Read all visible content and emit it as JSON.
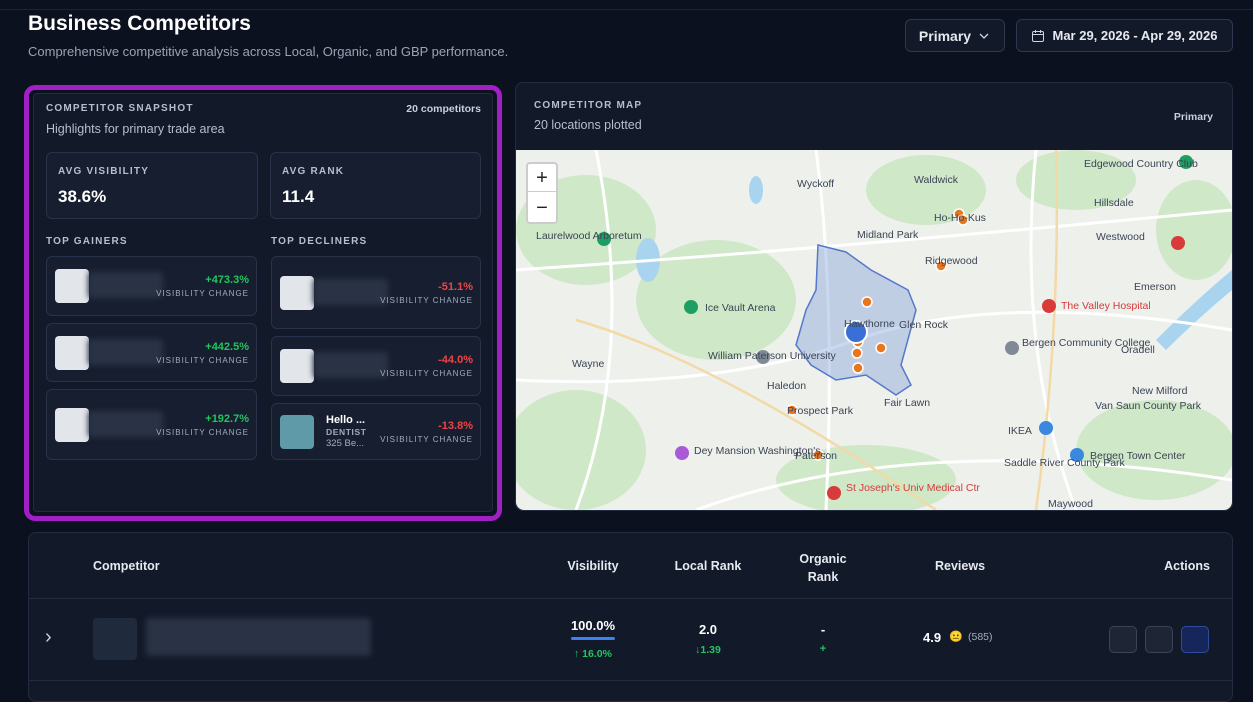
{
  "header": {
    "title": "Business Competitors",
    "subtitle": "Comprehensive competitive analysis across Local, Organic, and GBP performance.",
    "area_button": "Primary",
    "date_range": "Mar 29, 2026 - Apr 29, 2026"
  },
  "snapshot": {
    "label": "COMPETITOR SNAPSHOT",
    "subtitle": "Highlights for primary trade area",
    "count": "20 competitors",
    "metrics": [
      {
        "label": "AVG VISIBILITY",
        "value": "38.6%"
      },
      {
        "label": "AVG RANK",
        "value": "11.4"
      }
    ],
    "gainers_label": "TOP GAINERS",
    "decliners_label": "TOP DECLINERS",
    "gainers": [
      {
        "change": "+473.3%",
        "caption": "VISIBILITY CHANGE"
      },
      {
        "change": "+442.5%",
        "caption": "VISIBILITY CHANGE"
      },
      {
        "change": "+192.7%",
        "caption": "VISIBILITY CHANGE"
      }
    ],
    "decliners": [
      {
        "change": "-51.1%",
        "caption": "VISIBILITY CHANGE"
      },
      {
        "change": "-44.0%",
        "caption": "VISIBILITY CHANGE"
      },
      {
        "name": "Hello ...",
        "category": "DENTIST",
        "address": "325 Be...",
        "change": "-13.8%",
        "caption": "VISIBILITY CHANGE"
      }
    ]
  },
  "map": {
    "label": "COMPETITOR MAP",
    "subtitle": "20 locations plotted",
    "area": "Primary",
    "zoom_in": "+",
    "zoom_out": "−",
    "places": [
      "Wyckoff",
      "Waldwick",
      "Ho-Ho-Kus",
      "Midland Park",
      "Hillsdale",
      "Westwood",
      "Ridgewood",
      "Emerson",
      "The Valley Hospital",
      "Ice Vault Arena",
      "Glen Rock",
      "Oradell",
      "Wayne",
      "William Paterson University",
      "Bergen Community College",
      "Haledon",
      "Prospect Park",
      "Fair Lawn",
      "New Milford",
      "Van Saun County Park",
      "Dey Mansion Washington's...",
      "Paterson",
      "IKEA",
      "Bergen Town Center",
      "Saddle River County Park",
      "St Joseph's Univ Medical Ctr",
      "Maywood",
      "Edgewood Country Club",
      "Laurelwood Arboretum",
      "Hawthorne"
    ]
  },
  "table": {
    "headers": [
      "Competitor",
      "Visibility",
      "Local Rank",
      "Organic Rank",
      "Reviews",
      "Actions"
    ],
    "row": {
      "expand": "›",
      "visibility": "100.0%",
      "visibility_change": "↑ 16.0%",
      "local_rank": "2.0",
      "local_change": "↓1.39",
      "organic_rank": "-",
      "organic_change": "+",
      "rating": "4.9",
      "emoji": "😐",
      "review_count": "(585)"
    }
  }
}
